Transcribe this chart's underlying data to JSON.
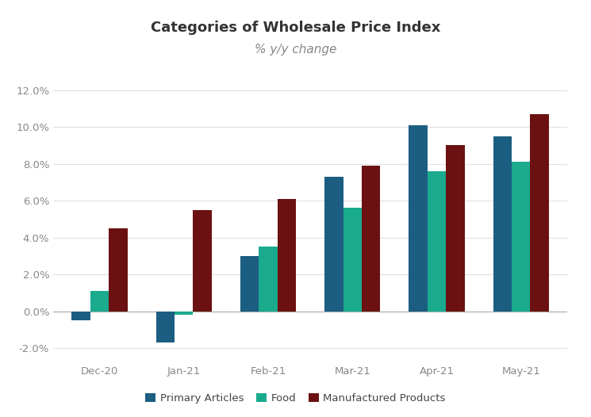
{
  "title": "Categories of Wholesale Price Index",
  "subtitle": "% y/y change",
  "categories": [
    "Dec-20",
    "Jan-21",
    "Feb-21",
    "Mar-21",
    "Apr-21",
    "May-21"
  ],
  "series": {
    "Primary Articles": [
      -0.5,
      -1.7,
      3.0,
      7.3,
      10.1,
      9.5
    ],
    "Food": [
      1.1,
      -0.2,
      3.5,
      5.6,
      7.6,
      8.1
    ],
    "Manufactured Products": [
      4.5,
      5.5,
      6.1,
      7.9,
      9.0,
      10.7
    ]
  },
  "colors": {
    "Primary Articles": "#1b5e82",
    "Food": "#1aaa8e",
    "Manufactured Products": "#6b1111"
  },
  "ylim": [
    -2.8,
    13.5
  ],
  "yticks": [
    -2.0,
    0.0,
    2.0,
    4.0,
    6.0,
    8.0,
    10.0,
    12.0
  ],
  "bar_width": 0.22,
  "background_color": "#ffffff",
  "title_fontsize": 13,
  "subtitle_fontsize": 11,
  "tick_fontsize": 9.5,
  "legend_fontsize": 9.5,
  "axis_color": "#aaaaaa",
  "tick_color": "#888888",
  "grid_color": "#e0e0e0"
}
